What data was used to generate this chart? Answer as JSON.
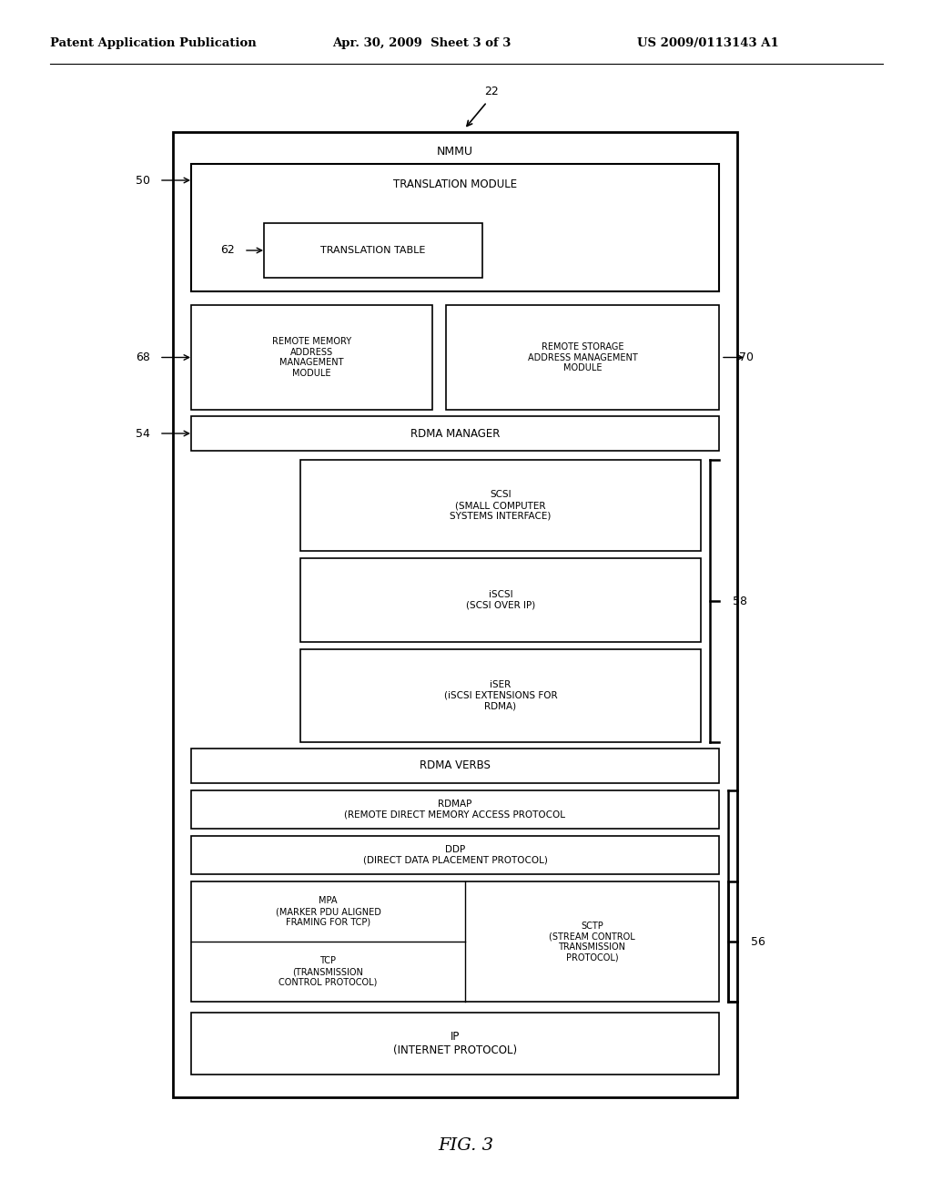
{
  "bg_color": "#ffffff",
  "header_text": "Patent Application Publication",
  "header_date": "Apr. 30, 2009  Sheet 3 of 3",
  "header_patent": "US 2009/0113143 A1",
  "fig_label": "FIG. 3",
  "outer_box_label": "22",
  "nmmu_label": "NMMU"
}
